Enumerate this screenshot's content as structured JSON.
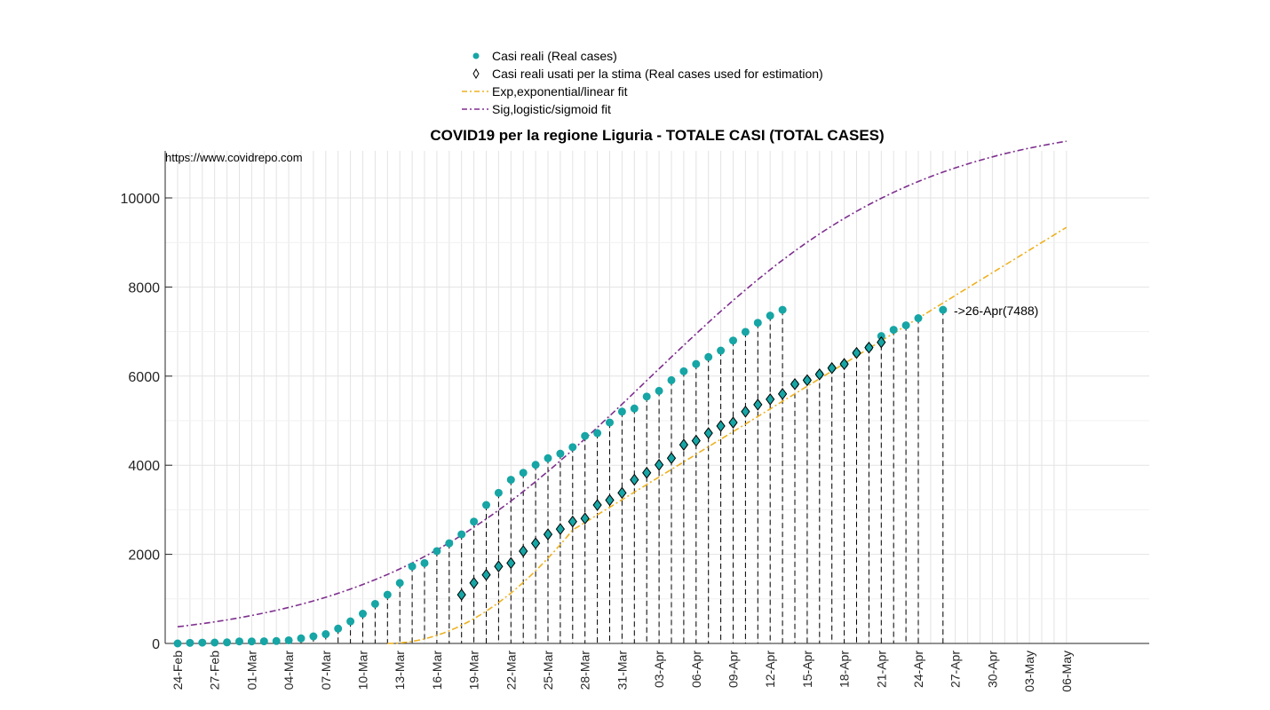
{
  "chart_data": {
    "type": "scatter",
    "title": "COVID19 per la regione Liguria - TOTALE CASI (TOTAL CASES)",
    "source_note": "https://www.covidrepo.com",
    "xlabel": "",
    "ylabel": "",
    "x_tick_labels": [
      "24-Feb",
      "27-Feb",
      "01-Mar",
      "04-Mar",
      "07-Mar",
      "10-Mar",
      "13-Mar",
      "16-Mar",
      "19-Mar",
      "22-Mar",
      "25-Mar",
      "28-Mar",
      "31-Mar",
      "03-Apr",
      "06-Apr",
      "09-Apr",
      "12-Apr",
      "15-Apr",
      "18-Apr",
      "21-Apr",
      "24-Apr",
      "27-Apr",
      "30-Apr",
      "03-May",
      "06-May"
    ],
    "x_range": [
      "24-Feb",
      "06-May"
    ],
    "ylim": [
      0,
      11000
    ],
    "y_ticks": [
      0,
      2000,
      4000,
      6000,
      8000,
      10000
    ],
    "grid": true,
    "legend_position": "top-center",
    "series": [
      {
        "name": "Casi reali (Real cases)",
        "marker": "circle",
        "color": "#17A5A5",
        "start_date": "24-Feb",
        "values": [
          0,
          13,
          18,
          20,
          24,
          45,
          45,
          48,
          54,
          70,
          114,
          159,
          209,
          333,
          495,
          667,
          887,
          1094,
          1357,
          1729,
          1804,
          2072,
          2248,
          2448,
          2735,
          3107,
          3380,
          3674,
          3830,
          4009,
          4158,
          4260,
          4406,
          4657,
          4720,
          4958,
          5203,
          5273,
          5541,
          5669,
          5908,
          6109,
          6272,
          6429,
          6573,
          6799,
          6993,
          7197,
          7357,
          7488
        ],
        "last_label_index": 62
      },
      {
        "name": "Casi reali usati per la stima (Real cases used for estimation)",
        "marker": "diamond",
        "color": "#000000",
        "points": [
          [
            "18-Mar",
            1094
          ],
          [
            "19-Mar",
            1357
          ],
          [
            "20-Mar",
            1540
          ],
          [
            "21-Mar",
            1729
          ],
          [
            "22-Mar",
            1804
          ],
          [
            "23-Mar",
            2072
          ],
          [
            "24-Mar",
            2248
          ],
          [
            "25-Mar",
            2448
          ],
          [
            "26-Mar",
            2567
          ],
          [
            "27-Mar",
            2735
          ],
          [
            "28-Mar",
            2805
          ],
          [
            "29-Mar",
            3107
          ],
          [
            "30-Mar",
            3216
          ],
          [
            "31-Mar",
            3380
          ],
          [
            "01-Apr",
            3674
          ],
          [
            "02-Apr",
            3830
          ],
          [
            "03-Apr",
            4009
          ],
          [
            "04-Apr",
            4158
          ],
          [
            "05-Apr",
            4460
          ],
          [
            "06-Apr",
            4550
          ],
          [
            "07-Apr",
            4720
          ],
          [
            "08-Apr",
            4880
          ],
          [
            "09-Apr",
            4958
          ],
          [
            "10-Apr",
            5203
          ],
          [
            "11-Apr",
            5360
          ],
          [
            "12-Apr",
            5480
          ],
          [
            "13-Apr",
            5600
          ],
          [
            "14-Apr",
            5820
          ],
          [
            "15-Apr",
            5908
          ],
          [
            "16-Apr",
            6040
          ],
          [
            "17-Apr",
            6180
          ],
          [
            "18-Apr",
            6272
          ],
          [
            "19-Apr",
            6520
          ],
          [
            "20-Apr",
            6640
          ],
          [
            "21-Apr",
            6760
          ]
        ]
      },
      {
        "name": "Exp,exponential/linear fit",
        "line": "dash-dot",
        "color": "#EDB120",
        "curve": "quadratic until 27-Mar, linear after",
        "x0": "12-Mar",
        "slope_per_day": 169.8,
        "anchor": [
          "27-Mar",
          2547
        ]
      },
      {
        "name": "Sig,logistic/sigmoid fit",
        "line": "dash-dot",
        "color": "#7E2F8E",
        "curve": "logistic",
        "K": 11800,
        "r": 0.09,
        "t0": "02-Apr"
      }
    ],
    "annotation": "->26-Apr(7488)"
  }
}
